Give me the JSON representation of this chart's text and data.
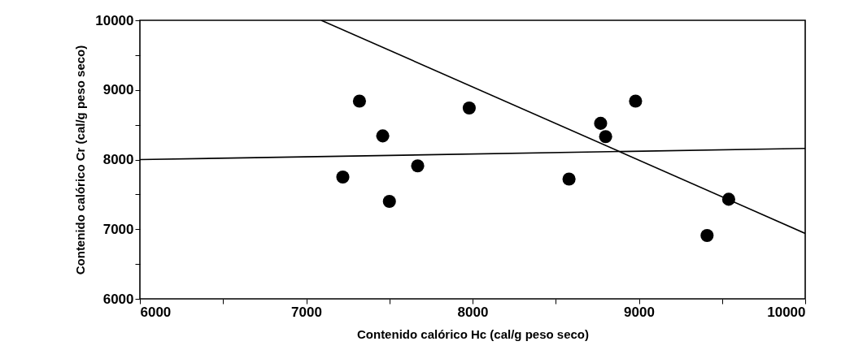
{
  "chart_data": {
    "type": "scatter",
    "xlabel": "Contenido calórico Hc (cal/g peso seco)",
    "ylabel": "Contenido calórico Cr (cal/g peso seco)",
    "xlim": [
      6000,
      10000
    ],
    "ylim": [
      6000,
      10000
    ],
    "xticks": [
      6000,
      {
        "value": 6500,
        "label": null
      },
      7000,
      {
        "value": 7500,
        "label": null
      },
      8000,
      {
        "value": 8500,
        "label": null
      },
      9000,
      {
        "value": 9500,
        "label": null
      },
      10000
    ],
    "yticks": [
      6000,
      {
        "value": 6500,
        "label": null
      },
      7000,
      {
        "value": 7500,
        "label": null
      },
      8000,
      {
        "value": 8500,
        "label": null
      },
      9000,
      {
        "value": 9500,
        "label": null
      },
      10000
    ],
    "grid": false,
    "series": [
      {
        "marker": "circle",
        "color": "#000000",
        "x": [
          7320,
          7980,
          7460,
          7670,
          7220,
          7500,
          8980,
          8770,
          8800,
          8580,
          9540,
          9410
        ],
        "values": [
          8840,
          8740,
          8340,
          7910,
          7750,
          7400,
          8840,
          8520,
          8330,
          7720,
          7430,
          6910
        ]
      },
      {
        "type": "line",
        "color": "#000000",
        "x": [
          6000,
          10000
        ],
        "values": [
          8000,
          8160
        ]
      },
      {
        "type": "line",
        "color": "#000000",
        "x": [
          7090,
          10000
        ],
        "values": [
          10000,
          6940
        ]
      }
    ]
  }
}
